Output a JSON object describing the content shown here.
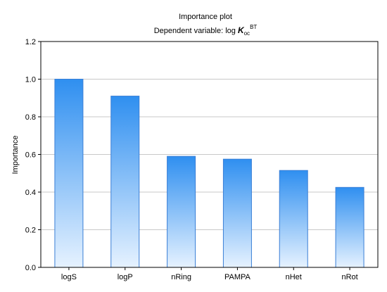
{
  "chart_data": {
    "type": "bar",
    "title": "Importance plot",
    "subtitle": {
      "prefix": "Dependent variable: log ",
      "symbol": "K",
      "subscript": "oc",
      "superscript": "BT"
    },
    "xlabel": "",
    "ylabel": "Importance",
    "categories": [
      "logS",
      "logP",
      "nRing",
      "PAMPA",
      "nHet",
      "nRot"
    ],
    "values": [
      1.0,
      0.91,
      0.59,
      0.575,
      0.515,
      0.425
    ],
    "ylim": [
      0.0,
      1.2
    ],
    "yticks": [
      "0.0",
      "0.2",
      "0.4",
      "0.6",
      "0.8",
      "1.0",
      "1.2"
    ],
    "grid": true,
    "colors": {
      "bar_top": "#2f8ff0",
      "bar_bottom": "#e6f2ff",
      "bar_stroke": "#3a7fd6",
      "grid": "#c8c8c8",
      "frame": "#000000"
    }
  }
}
